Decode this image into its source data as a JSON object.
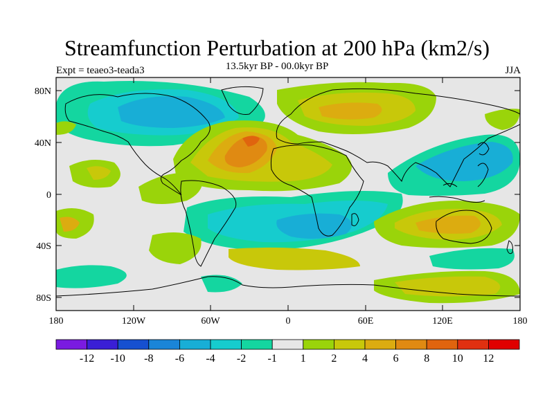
{
  "title": "Streamfunction Perturbation at 200 hPa (km2/s)",
  "subtitle": "13.5kyr BP - 00.0kyr BP",
  "left_label": "Expt = teaeo3-teada3",
  "right_label": "JJA",
  "map": {
    "lat_ticks": [
      "80N",
      "40N",
      "0",
      "40S",
      "80S"
    ],
    "lon_ticks": [
      "180",
      "120W",
      "60W",
      "0",
      "60E",
      "120E",
      "180"
    ]
  },
  "colorbar": {
    "labels": [
      "-12",
      "-10",
      "-8",
      "-6",
      "-4",
      "-2",
      "-1",
      "1",
      "2",
      "4",
      "6",
      "8",
      "10",
      "12"
    ],
    "colors": [
      "#7a1be0",
      "#3a1fd6",
      "#1650d0",
      "#1a85d8",
      "#18aed6",
      "#16ccce",
      "#14d6a0",
      "#e6e6e6",
      "#9ad40a",
      "#c8c80a",
      "#dcac10",
      "#e08a12",
      "#e0640e",
      "#e03010",
      "#e00000"
    ]
  },
  "colors": {
    "neutral": "#e6e6e6",
    "land_outline": "#000000"
  }
}
